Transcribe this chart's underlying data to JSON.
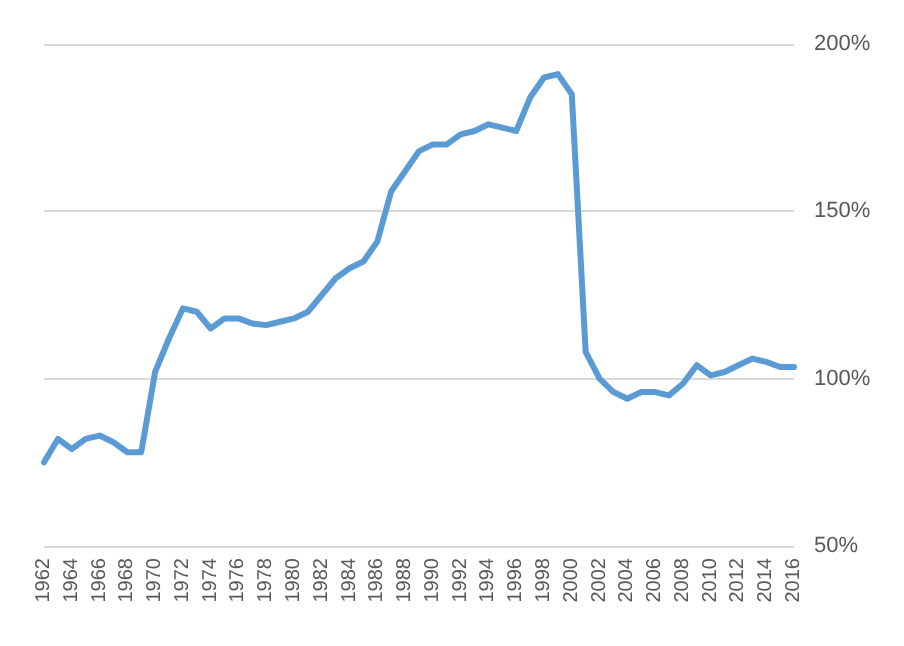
{
  "chart_data": {
    "type": "line",
    "categories": [
      "1962",
      null,
      "1964",
      null,
      "1966",
      null,
      "1968",
      null,
      "1970",
      null,
      "1972",
      null,
      "1974",
      null,
      "1976",
      null,
      "1978",
      null,
      "1980",
      null,
      "1982",
      null,
      "1984",
      null,
      "1986",
      null,
      "1988",
      null,
      "1990",
      null,
      "1992",
      null,
      "1994",
      null,
      "1996",
      null,
      "1998",
      null,
      "2000",
      null,
      "2002",
      null,
      "2004",
      null,
      "2006",
      null,
      "2008",
      null,
      "2010",
      null,
      "2012",
      null,
      "2014",
      null,
      "2016"
    ],
    "series": [
      {
        "color": "#5b9bd5",
        "values": [
          75,
          82,
          79,
          82,
          83,
          81,
          78,
          78,
          102,
          112,
          121,
          120,
          115,
          118,
          118,
          116.5,
          116,
          117,
          118,
          120,
          125,
          130,
          133,
          135,
          141,
          156,
          162,
          168,
          170,
          170,
          173,
          174,
          176,
          175,
          174,
          184,
          190,
          191,
          185,
          108,
          100,
          96,
          94,
          96,
          96,
          95,
          98.5,
          104,
          101,
          102,
          104,
          106,
          105,
          103.5,
          103.5
        ]
      }
    ],
    "ylim": [
      50,
      200
    ],
    "yticks": [
      {
        "value": 50,
        "label": "50%"
      },
      {
        "value": 100,
        "label": "100%"
      },
      {
        "value": 150,
        "label": "150%"
      },
      {
        "value": 200,
        "label": "200%"
      }
    ],
    "grid": "y",
    "marker": "none",
    "line_style": "solid"
  }
}
